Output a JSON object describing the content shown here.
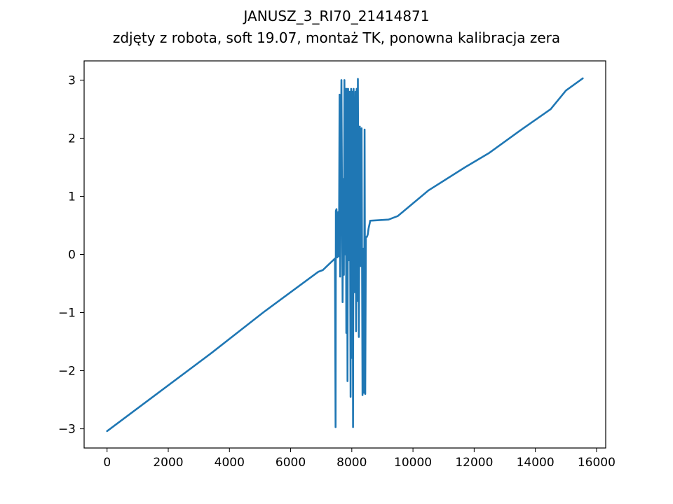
{
  "chart_data": {
    "type": "line",
    "title": "JANUSZ_3_RI70_21414871",
    "subtitle": "zdjęty z robota, soft 19.07, montaż TK, ponowna kalibracja zera",
    "xlabel": "",
    "ylabel": "",
    "xlim": [
      -750,
      16300
    ],
    "ylim": [
      -3.33,
      3.33
    ],
    "grid": false,
    "legend": "none",
    "line_color": "#1f77b4",
    "x_ticks": [
      0,
      2000,
      4000,
      6000,
      8000,
      10000,
      12000,
      14000,
      16000
    ],
    "x_tick_labels": [
      "0",
      "2000",
      "4000",
      "6000",
      "8000",
      "10000",
      "12000",
      "14000",
      "16000"
    ],
    "y_ticks": [
      -3,
      -2,
      -1,
      0,
      1,
      2,
      3
    ],
    "y_tick_labels": [
      "−3",
      "−2",
      "−1",
      "0",
      "1",
      "2",
      "3"
    ],
    "series": [
      {
        "x": [
          0,
          1700,
          3400,
          5100,
          6900,
          7050,
          7450,
          7470,
          7480,
          7500,
          7530,
          7560,
          7580,
          7600,
          7620,
          7660,
          7700,
          7720,
          7740,
          7760,
          7780,
          7800,
          7820,
          7840,
          7860,
          7880,
          7900,
          7930,
          7960,
          7980,
          8000,
          8020,
          8040,
          8060,
          8090,
          8120,
          8140,
          8160,
          8180,
          8200,
          8230,
          8260,
          8290,
          8320,
          8350,
          8380,
          8400,
          8420,
          8440,
          8460,
          8490,
          8520,
          8550,
          8570,
          8590,
          8600,
          9200,
          9500,
          10500,
          11700,
          12500,
          13500,
          14500,
          15000,
          15550
        ],
        "y": [
          -3.04,
          -2.37,
          -1.7,
          -1.0,
          -0.3,
          -0.27,
          -0.07,
          -2.97,
          0.75,
          0.78,
          -0.05,
          0.73,
          -0.03,
          2.75,
          -0.38,
          3.0,
          -0.82,
          1.3,
          -0.35,
          3.0,
          0.0,
          2.85,
          -1.35,
          2.85,
          -2.18,
          2.85,
          -0.1,
          2.8,
          -2.45,
          2.85,
          -1.78,
          2.8,
          -2.97,
          2.85,
          -0.65,
          2.8,
          -1.32,
          2.85,
          -0.8,
          3.02,
          -1.42,
          2.2,
          -0.2,
          2.17,
          -2.42,
          0.1,
          -2.38,
          2.15,
          -2.4,
          0.3,
          0.3,
          0.34,
          0.45,
          0.5,
          0.55,
          0.58,
          0.6,
          0.66,
          1.1,
          1.5,
          1.75,
          2.13,
          2.5,
          2.82,
          3.03
        ]
      }
    ]
  }
}
